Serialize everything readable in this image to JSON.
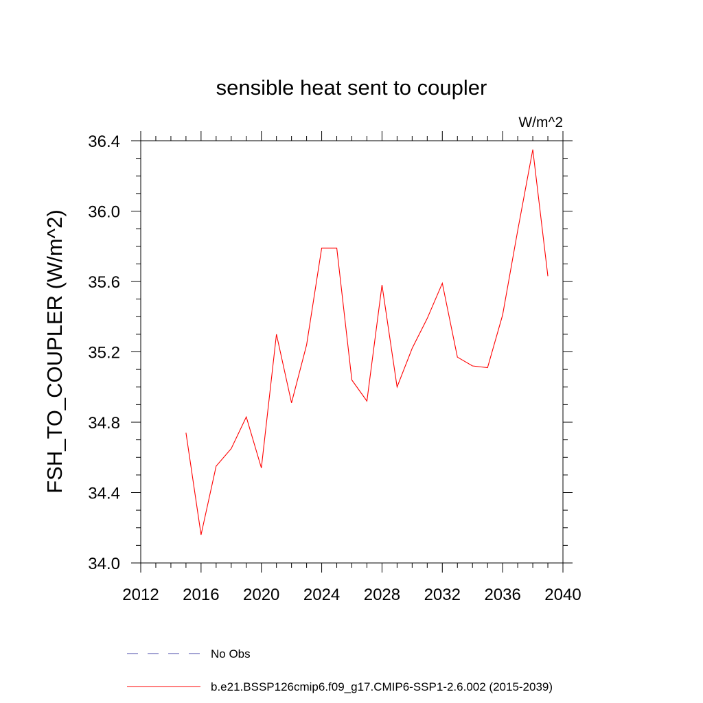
{
  "chart_data": {
    "type": "line",
    "title": "sensible heat sent to coupler",
    "units_label": "W/m^2",
    "ylabel": "FSH_TO_COUPLER  (W/m^2)",
    "xlabel": "",
    "xlim": [
      2012,
      2040
    ],
    "ylim": [
      34.0,
      36.4
    ],
    "x_ticks": [
      2012,
      2016,
      2020,
      2024,
      2028,
      2032,
      2036,
      2040
    ],
    "y_ticks": [
      34.0,
      34.4,
      34.8,
      35.2,
      35.6,
      36.0,
      36.4
    ],
    "y_tick_labels": [
      "34.0",
      "34.4",
      "34.8",
      "35.2",
      "35.6",
      "36.0",
      "36.4"
    ],
    "grid": false,
    "legend_position": "bottom",
    "series": [
      {
        "name": "b.e21.BSSP126cmip6.f09_g17.CMIP6-SSP1-2.6.002 (2015-2039)",
        "color": "#ff0000",
        "dash": "solid",
        "x": [
          2015,
          2016,
          2017,
          2018,
          2019,
          2020,
          2021,
          2022,
          2023,
          2024,
          2025,
          2026,
          2027,
          2028,
          2029,
          2030,
          2031,
          2032,
          2033,
          2034,
          2035,
          2036,
          2037,
          2038,
          2039
        ],
        "values": [
          34.74,
          34.16,
          34.55,
          34.65,
          34.83,
          34.54,
          35.3,
          34.91,
          35.24,
          35.79,
          35.79,
          35.04,
          34.92,
          35.58,
          35.0,
          35.22,
          35.39,
          35.59,
          35.17,
          35.12,
          35.11,
          35.41,
          35.89,
          36.35,
          35.63
        ]
      }
    ],
    "legend": [
      {
        "label": "No Obs",
        "color": "#4a4aa8",
        "dash": "dashed"
      },
      {
        "label": "b.e21.BSSP126cmip6.f09_g17.CMIP6-SSP1-2.6.002 (2015-2039)",
        "color": "#ff0000",
        "dash": "solid"
      }
    ]
  }
}
